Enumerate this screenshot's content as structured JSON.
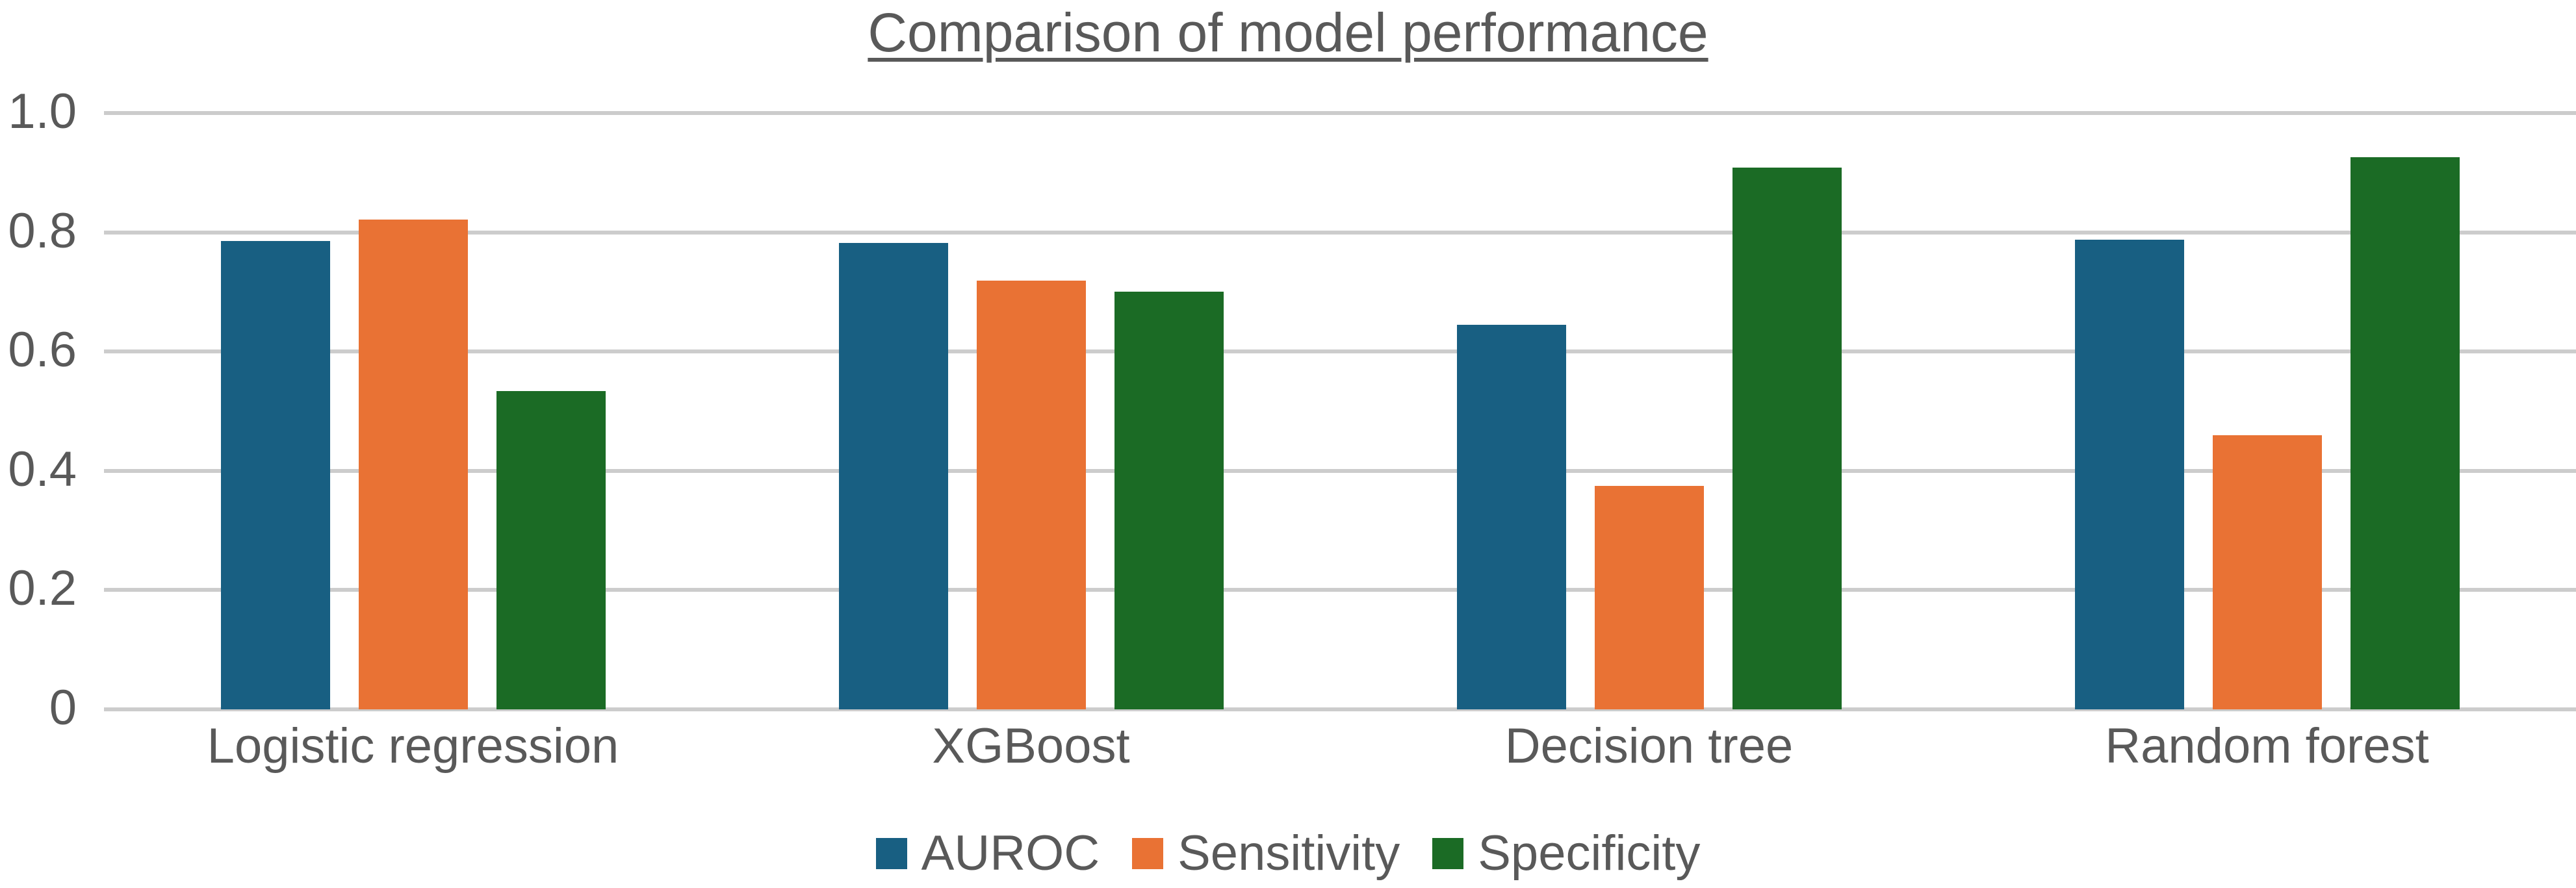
{
  "chart_data": {
    "type": "bar",
    "title": "Comparison of model performance",
    "xlabel": "",
    "ylabel": "",
    "ylim": [
      0,
      1.0
    ],
    "yticks": [
      "0",
      "0.2",
      "0.4",
      "0.6",
      "0.8",
      "1.0"
    ],
    "grid": true,
    "legend_position": "bottom",
    "categories": [
      "Logistic regression",
      "XGBoost",
      "Decision tree",
      "Random forest"
    ],
    "series": [
      {
        "name": "AUROC",
        "color": "#185f82",
        "values": [
          0.785,
          0.782,
          0.645,
          0.788
        ]
      },
      {
        "name": "Sensitivity",
        "color": "#e97234",
        "values": [
          0.821,
          0.719,
          0.375,
          0.46
        ]
      },
      {
        "name": "Specificity",
        "color": "#1b6b25",
        "values": [
          0.534,
          0.7,
          0.909,
          0.926
        ]
      }
    ]
  }
}
